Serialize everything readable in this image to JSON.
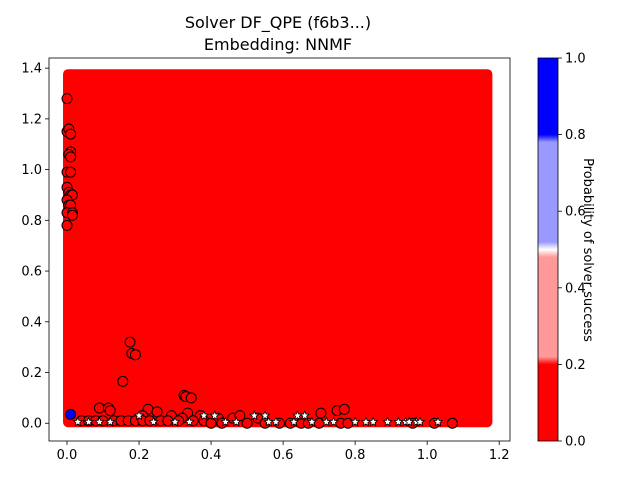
{
  "chart_data": {
    "type": "scatter",
    "title_line1": "Solver DF_QPE (f6b3...)",
    "title_line2": "Embedding: NNMF",
    "xlabel": "",
    "ylabel": "",
    "xlim": [
      -0.05,
      1.23
    ],
    "ylim": [
      -0.07,
      1.44
    ],
    "x_ticks": [
      0.0,
      0.2,
      0.4,
      0.6,
      0.8,
      1.0,
      1.2
    ],
    "x_tick_labels": [
      "0.0",
      "0.2",
      "0.4",
      "0.6",
      "0.8",
      "1.0",
      "1.2"
    ],
    "y_ticks": [
      0.0,
      0.2,
      0.4,
      0.6,
      0.8,
      1.0,
      1.2,
      1.4
    ],
    "y_tick_labels": [
      "0.0",
      "0.2",
      "0.4",
      "0.6",
      "0.8",
      "1.0",
      "1.2",
      "1.4"
    ],
    "grid": false,
    "background_region": {
      "x": [
        0.0,
        1.17
      ],
      "y": [
        0.0,
        1.38
      ],
      "probability": 0.05,
      "color": "#ff0000"
    },
    "circles": [
      [
        0.0,
        1.28
      ],
      [
        0.0,
        1.15
      ],
      [
        0.005,
        1.16
      ],
      [
        0.01,
        1.14
      ],
      [
        0.01,
        1.07
      ],
      [
        0.005,
        1.06
      ],
      [
        0.01,
        1.05
      ],
      [
        0.0,
        0.99
      ],
      [
        0.01,
        0.99
      ],
      [
        0.0,
        0.93
      ],
      [
        0.005,
        0.91
      ],
      [
        0.01,
        0.9
      ],
      [
        0.015,
        0.9
      ],
      [
        0.0,
        0.88
      ],
      [
        0.005,
        0.86
      ],
      [
        0.01,
        0.86
      ],
      [
        0.0,
        0.83
      ],
      [
        0.015,
        0.83
      ],
      [
        0.015,
        0.82
      ],
      [
        0.0,
        0.78
      ],
      [
        0.175,
        0.32
      ],
      [
        0.18,
        0.275
      ],
      [
        0.19,
        0.27
      ],
      [
        0.155,
        0.165
      ],
      [
        0.325,
        0.11
      ],
      [
        0.33,
        0.105
      ],
      [
        0.345,
        0.1
      ],
      [
        0.09,
        0.06
      ],
      [
        0.115,
        0.06
      ],
      [
        0.12,
        0.05
      ],
      [
        0.225,
        0.055
      ],
      [
        0.25,
        0.045
      ],
      [
        0.335,
        0.04
      ],
      [
        0.21,
        0.03
      ],
      [
        0.29,
        0.03
      ],
      [
        0.32,
        0.02
      ],
      [
        0.37,
        0.03
      ],
      [
        0.42,
        0.02
      ],
      [
        0.46,
        0.02
      ],
      [
        0.48,
        0.03
      ],
      [
        0.53,
        0.02
      ],
      [
        0.04,
        0.01
      ],
      [
        0.06,
        0.01
      ],
      [
        0.08,
        0.01
      ],
      [
        0.1,
        0.01
      ],
      [
        0.13,
        0.01
      ],
      [
        0.15,
        0.01
      ],
      [
        0.17,
        0.01
      ],
      [
        0.19,
        0.01
      ],
      [
        0.21,
        0.01
      ],
      [
        0.23,
        0.01
      ],
      [
        0.26,
        0.01
      ],
      [
        0.28,
        0.01
      ],
      [
        0.31,
        0.01
      ],
      [
        0.35,
        0.01
      ],
      [
        0.38,
        0.01
      ],
      [
        0.4,
        0.0
      ],
      [
        0.43,
        0.0
      ],
      [
        0.5,
        0.0
      ],
      [
        0.55,
        0.0
      ],
      [
        0.59,
        0.0
      ],
      [
        0.62,
        0.0
      ],
      [
        0.65,
        0.0
      ],
      [
        0.67,
        0.0
      ],
      [
        0.7,
        0.0
      ],
      [
        0.76,
        0.0
      ],
      [
        0.78,
        0.0
      ],
      [
        0.96,
        0.0
      ],
      [
        1.02,
        0.0
      ],
      [
        1.07,
        0.0
      ],
      [
        0.705,
        0.04
      ],
      [
        0.75,
        0.05
      ],
      [
        0.77,
        0.055
      ]
    ],
    "stars": [
      [
        0.03,
        0.005
      ],
      [
        0.06,
        0.005
      ],
      [
        0.09,
        0.005
      ],
      [
        0.12,
        0.005
      ],
      [
        0.2,
        0.03
      ],
      [
        0.24,
        0.005
      ],
      [
        0.3,
        0.005
      ],
      [
        0.34,
        0.005
      ],
      [
        0.38,
        0.03
      ],
      [
        0.41,
        0.03
      ],
      [
        0.44,
        0.005
      ],
      [
        0.47,
        0.005
      ],
      [
        0.52,
        0.03
      ],
      [
        0.55,
        0.03
      ],
      [
        0.56,
        0.005
      ],
      [
        0.58,
        0.005
      ],
      [
        0.63,
        0.005
      ],
      [
        0.64,
        0.03
      ],
      [
        0.66,
        0.03
      ],
      [
        0.68,
        0.005
      ],
      [
        0.72,
        0.005
      ],
      [
        0.74,
        0.005
      ],
      [
        0.8,
        0.005
      ],
      [
        0.83,
        0.005
      ],
      [
        0.85,
        0.005
      ],
      [
        0.89,
        0.005
      ],
      [
        0.92,
        0.005
      ],
      [
        0.94,
        0.005
      ],
      [
        0.95,
        0.005
      ],
      [
        0.97,
        0.005
      ],
      [
        0.98,
        0.005
      ],
      [
        1.03,
        0.005
      ]
    ],
    "success_points": [
      [
        0.01,
        0.035
      ]
    ],
    "colorbar": {
      "label": "Probability of solver success",
      "range": [
        0.0,
        1.0
      ],
      "ticks": [
        0.0,
        0.2,
        0.4,
        0.6,
        0.8,
        1.0
      ],
      "tick_labels": [
        "0.0",
        "0.2",
        "0.4",
        "0.6",
        "0.8",
        "1.0"
      ],
      "stops": [
        {
          "offset": 0.0,
          "color": "#ff0000"
        },
        {
          "offset": 0.2,
          "color": "#ff0000"
        },
        {
          "offset": 0.22,
          "color": "#ff9999"
        },
        {
          "offset": 0.48,
          "color": "#ff9999"
        },
        {
          "offset": 0.5,
          "color": "#ffffff"
        },
        {
          "offset": 0.52,
          "color": "#9999ff"
        },
        {
          "offset": 0.78,
          "color": "#9999ff"
        },
        {
          "offset": 0.8,
          "color": "#0000ff"
        },
        {
          "offset": 1.0,
          "color": "#0000ff"
        }
      ]
    }
  }
}
